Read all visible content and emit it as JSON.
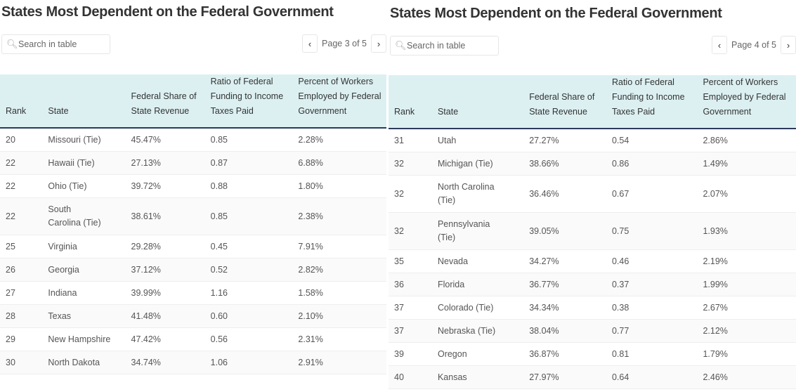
{
  "columns": [
    "Rank",
    "State",
    "Federal Share of State Revenue",
    "Ratio of Federal Funding to Income Taxes Paid",
    "Percent of Workers Employed by Federal Government"
  ],
  "tables": [
    {
      "title": "States Most Dependent on the Federal Government",
      "search_placeholder": "Search in table",
      "page_label": "Page 3 of 5",
      "rows": [
        [
          "20",
          "Missouri (Tie)",
          "45.47%",
          "0.85",
          "2.28%"
        ],
        [
          "22",
          "Hawaii (Tie)",
          "27.13%",
          "0.87",
          "6.88%"
        ],
        [
          "22",
          "Ohio (Tie)",
          "39.72%",
          "0.88",
          "1.80%"
        ],
        [
          "22",
          "South Carolina (Tie)",
          "38.61%",
          "0.85",
          "2.38%"
        ],
        [
          "25",
          "Virginia",
          "29.28%",
          "0.45",
          "7.91%"
        ],
        [
          "26",
          "Georgia",
          "37.12%",
          "0.52",
          "2.82%"
        ],
        [
          "27",
          "Indiana",
          "39.99%",
          "1.16",
          "1.58%"
        ],
        [
          "28",
          "Texas",
          "41.48%",
          "0.60",
          "2.10%"
        ],
        [
          "29",
          "New Hampshire",
          "47.42%",
          "0.56",
          "2.31%"
        ],
        [
          "30",
          "North Dakota",
          "34.74%",
          "1.06",
          "2.91%"
        ]
      ]
    },
    {
      "title": "States Most Dependent on the Federal Government",
      "search_placeholder": "Search in table",
      "page_label": "Page 4 of 5",
      "rows": [
        [
          "31",
          "Utah",
          "27.27%",
          "0.54",
          "2.86%"
        ],
        [
          "32",
          "Michigan (Tie)",
          "38.66%",
          "0.86",
          "1.49%"
        ],
        [
          "32",
          "North Carolina (Tie)",
          "36.46%",
          "0.67",
          "2.07%"
        ],
        [
          "32",
          "Pennsylvania (Tie)",
          "39.05%",
          "0.75",
          "1.93%"
        ],
        [
          "35",
          "Nevada",
          "34.27%",
          "0.46",
          "2.19%"
        ],
        [
          "36",
          "Florida",
          "36.77%",
          "0.37",
          "1.99%"
        ],
        [
          "37",
          "Colorado (Tie)",
          "34.34%",
          "0.38",
          "2.67%"
        ],
        [
          "37",
          "Nebraska (Tie)",
          "38.04%",
          "0.77",
          "2.12%"
        ],
        [
          "39",
          "Oregon",
          "36.87%",
          "0.81",
          "1.79%"
        ],
        [
          "40",
          "Kansas",
          "27.97%",
          "0.64",
          "2.46%"
        ]
      ]
    }
  ],
  "icons": {
    "search": "search-icon",
    "prev": "chevron-left-icon",
    "next": "chevron-right-icon"
  }
}
